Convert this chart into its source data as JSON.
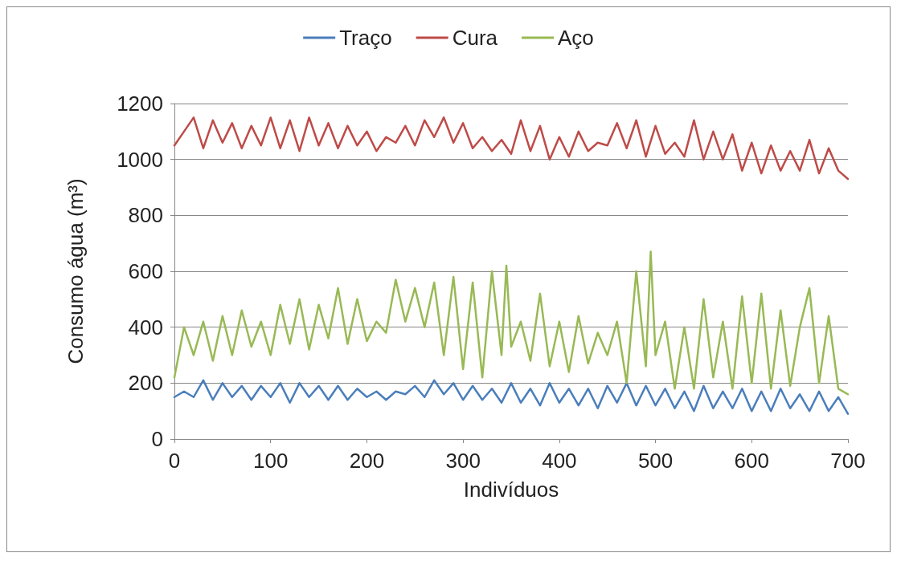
{
  "chart_data": {
    "type": "line",
    "xlabel": "Indivíduos",
    "ylabel": "Consumo água (m³)",
    "legend": "top",
    "grid": "y",
    "marker": "none",
    "line_style": "solid",
    "xlim": [
      0,
      700
    ],
    "xticks": [
      0,
      100,
      200,
      300,
      400,
      500,
      600,
      700
    ],
    "ylim": [
      0,
      1200
    ],
    "yticks": [
      0,
      200,
      400,
      600,
      800,
      1000,
      1200
    ],
    "x": [
      0,
      10,
      20,
      30,
      40,
      50,
      60,
      70,
      80,
      90,
      100,
      110,
      120,
      130,
      140,
      150,
      160,
      170,
      180,
      190,
      200,
      210,
      220,
      230,
      240,
      250,
      260,
      270,
      280,
      290,
      300,
      310,
      320,
      330,
      340,
      350,
      360,
      370,
      380,
      390,
      400,
      410,
      420,
      430,
      440,
      450,
      460,
      470,
      480,
      490,
      500,
      510,
      520,
      530,
      540,
      550,
      560,
      570,
      580,
      590,
      600,
      610,
      620,
      630,
      640,
      650,
      660,
      670,
      680,
      690,
      700
    ],
    "series": [
      {
        "name": "Traço",
        "color": "#4a7ebb",
        "values": [
          150,
          170,
          150,
          210,
          140,
          200,
          150,
          190,
          140,
          190,
          150,
          200,
          130,
          200,
          150,
          190,
          140,
          190,
          140,
          180,
          150,
          170,
          140,
          170,
          160,
          190,
          150,
          210,
          160,
          200,
          140,
          190,
          140,
          180,
          130,
          200,
          130,
          180,
          120,
          200,
          130,
          180,
          120,
          180,
          110,
          190,
          130,
          200,
          120,
          190,
          120,
          180,
          110,
          170,
          100,
          190,
          110,
          170,
          110,
          180,
          100,
          170,
          100,
          180,
          110,
          160,
          100,
          170,
          100,
          150,
          90
        ]
      },
      {
        "name": "Cura",
        "color": "#be4b48",
        "values": [
          1050,
          1100,
          1150,
          1040,
          1140,
          1060,
          1130,
          1040,
          1120,
          1050,
          1150,
          1040,
          1140,
          1030,
          1150,
          1050,
          1130,
          1040,
          1120,
          1050,
          1100,
          1030,
          1080,
          1060,
          1120,
          1050,
          1140,
          1080,
          1150,
          1060,
          1130,
          1040,
          1080,
          1030,
          1070,
          1020,
          1140,
          1030,
          1120,
          1000,
          1080,
          1010,
          1100,
          1030,
          1060,
          1050,
          1130,
          1040,
          1140,
          1010,
          1120,
          1020,
          1060,
          1010,
          1140,
          1000,
          1100,
          1000,
          1090,
          960,
          1060,
          950,
          1050,
          960,
          1030,
          960,
          1070,
          950,
          1040,
          960,
          930
        ]
      },
      {
        "name": "Aço",
        "color": "#98b954",
        "x": [
          0,
          10,
          20,
          30,
          40,
          50,
          60,
          70,
          80,
          90,
          100,
          110,
          120,
          130,
          140,
          150,
          160,
          170,
          180,
          190,
          200,
          210,
          220,
          230,
          240,
          250,
          260,
          270,
          280,
          290,
          300,
          310,
          320,
          330,
          340,
          345,
          350,
          360,
          370,
          380,
          390,
          400,
          410,
          420,
          430,
          440,
          450,
          460,
          470,
          480,
          490,
          495,
          500,
          510,
          520,
          530,
          540,
          550,
          560,
          570,
          580,
          590,
          600,
          610,
          620,
          630,
          640,
          650,
          660,
          670,
          680,
          690,
          700
        ],
        "values": [
          220,
          400,
          300,
          420,
          280,
          440,
          300,
          460,
          330,
          420,
          300,
          480,
          340,
          500,
          320,
          480,
          360,
          540,
          340,
          500,
          350,
          420,
          380,
          570,
          420,
          540,
          400,
          560,
          300,
          580,
          250,
          560,
          220,
          600,
          300,
          620,
          330,
          420,
          280,
          520,
          260,
          420,
          240,
          440,
          270,
          380,
          300,
          420,
          200,
          600,
          260,
          670,
          300,
          420,
          180,
          400,
          180,
          500,
          220,
          420,
          180,
          510,
          200,
          520,
          180,
          460,
          190,
          400,
          540,
          200,
          440,
          180,
          160
        ]
      }
    ]
  }
}
